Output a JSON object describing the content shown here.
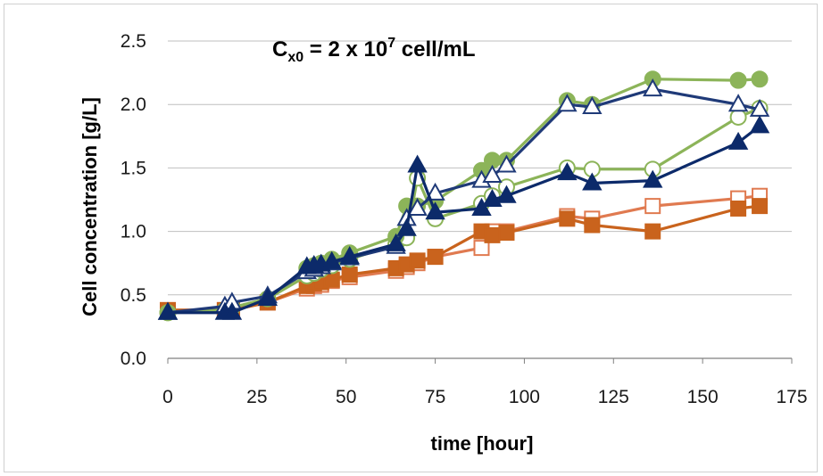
{
  "chart_data": {
    "type": "line",
    "title": "",
    "annotation": {
      "base": "C",
      "sub": "x0",
      "mid": " = 2 x 10",
      "sup": "7",
      "tail": " cell/mL"
    },
    "xlabel": "time [hour]",
    "ylabel": "Cell concentration [g/L]",
    "xlim": [
      0,
      175
    ],
    "ylim": [
      0,
      2.5
    ],
    "xticks": [
      0,
      25,
      50,
      75,
      100,
      125,
      150,
      175
    ],
    "yticks": [
      0.0,
      0.5,
      1.0,
      1.5,
      2.0,
      2.5
    ],
    "yticklabels": [
      "0.0",
      "0.5",
      "1.0",
      "1.5",
      "2.0",
      "2.5"
    ],
    "grid": "horizontal",
    "series": [
      {
        "color": "#e07a50",
        "marker": "square-open",
        "x": [
          0,
          16,
          18,
          28,
          39,
          41,
          43,
          46,
          51,
          64,
          67,
          70,
          75,
          88,
          91,
          95,
          112,
          119,
          136,
          160,
          166
        ],
        "y": [
          0.38,
          0.38,
          0.38,
          0.44,
          0.55,
          0.57,
          0.58,
          0.61,
          0.64,
          0.69,
          0.72,
          0.75,
          0.8,
          0.87,
          1.0,
          1.0,
          1.12,
          1.1,
          1.2,
          1.26,
          1.28
        ]
      },
      {
        "color": "#c9631d",
        "marker": "square-filled",
        "x": [
          0,
          16,
          18,
          28,
          39,
          41,
          43,
          46,
          51,
          64,
          67,
          70,
          75,
          88,
          91,
          95,
          112,
          119,
          136,
          160,
          166
        ],
        "y": [
          0.38,
          0.38,
          0.38,
          0.44,
          0.57,
          0.59,
          0.6,
          0.62,
          0.66,
          0.71,
          0.74,
          0.77,
          0.8,
          1.0,
          0.97,
          0.99,
          1.1,
          1.05,
          1.0,
          1.18,
          1.2
        ]
      },
      {
        "color": "#8cb459",
        "marker": "circle-open",
        "x": [
          0,
          16,
          18,
          28,
          39,
          41,
          43,
          46,
          51,
          64,
          67,
          70,
          75,
          88,
          91,
          95,
          112,
          119,
          136,
          160,
          166
        ],
        "y": [
          0.36,
          0.38,
          0.4,
          0.47,
          0.65,
          0.67,
          0.7,
          0.73,
          0.78,
          0.9,
          0.95,
          1.42,
          1.1,
          1.22,
          1.28,
          1.35,
          1.5,
          1.49,
          1.49,
          1.9,
          1.97
        ]
      },
      {
        "color": "#8cb459",
        "marker": "circle-filled",
        "x": [
          0,
          16,
          18,
          28,
          39,
          41,
          43,
          46,
          51,
          64,
          67,
          70,
          75,
          88,
          91,
          95,
          112,
          119,
          136,
          160,
          166
        ],
        "y": [
          0.36,
          0.38,
          0.4,
          0.47,
          0.71,
          0.73,
          0.75,
          0.78,
          0.83,
          0.96,
          1.2,
          1.2,
          1.24,
          1.48,
          1.56,
          1.56,
          2.03,
          2.0,
          2.2,
          2.19,
          2.2
        ]
      },
      {
        "color": "#1f3a78",
        "marker": "triangle-open",
        "x": [
          0,
          16,
          18,
          28,
          39,
          41,
          43,
          46,
          51,
          64,
          67,
          70,
          75,
          88,
          91,
          95,
          112,
          119,
          136,
          160,
          166
        ],
        "y": [
          0.36,
          0.41,
          0.44,
          0.49,
          0.68,
          0.7,
          0.72,
          0.75,
          0.79,
          0.88,
          1.1,
          1.18,
          1.3,
          1.4,
          1.44,
          1.52,
          2.0,
          1.98,
          2.12,
          2.0,
          1.96
        ]
      },
      {
        "color": "#0c2a6a",
        "marker": "triangle-filled",
        "x": [
          0,
          16,
          18,
          28,
          39,
          41,
          43,
          46,
          51,
          64,
          67,
          70,
          75,
          88,
          91,
          95,
          112,
          119,
          136,
          160,
          166
        ],
        "y": [
          0.36,
          0.36,
          0.36,
          0.47,
          0.72,
          0.73,
          0.74,
          0.76,
          0.8,
          0.9,
          1.02,
          1.52,
          1.15,
          1.18,
          1.25,
          1.28,
          1.46,
          1.38,
          1.4,
          1.7,
          1.83
        ]
      }
    ]
  }
}
